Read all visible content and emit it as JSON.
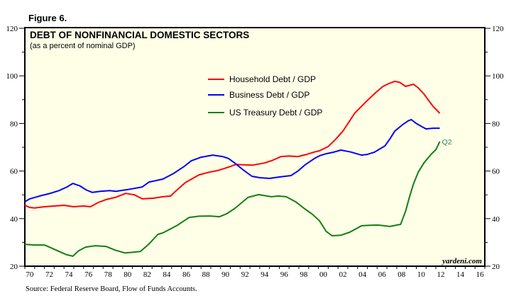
{
  "figure_label": "Figure 6.",
  "source_note": "Source: Federal Reserve Board, Flow of Funds Accounts.",
  "watermark": "yardeni.com",
  "chart_data": {
    "type": "line",
    "title": "DEBT OF NONFINANCIAL DOMESTIC SECTORS",
    "subtitle": "(as a percent of nominal GDP)",
    "xlabel": "",
    "ylabel": "",
    "xlim": [
      1970,
      2017
    ],
    "ylim": [
      20,
      120
    ],
    "yticks": [
      20,
      40,
      60,
      80,
      100,
      120
    ],
    "yticks_minor": [
      30,
      50,
      70,
      90,
      110
    ],
    "ytick_labels_left": [
      "20",
      "40",
      "60",
      "80",
      "100",
      "120"
    ],
    "ytick_labels_right": [
      "20",
      "40",
      "60",
      "80",
      "100",
      "120"
    ],
    "xtick_labels": [
      "70",
      "72",
      "74",
      "76",
      "78",
      "80",
      "82",
      "84",
      "86",
      "88",
      "90",
      "92",
      "94",
      "96",
      "98",
      "00",
      "02",
      "04",
      "06",
      "08",
      "10",
      "12",
      "14",
      "16"
    ],
    "xtick_years": [
      1970,
      1972,
      1974,
      1976,
      1978,
      1980,
      1982,
      1984,
      1986,
      1988,
      1990,
      1992,
      1994,
      1996,
      1998,
      2000,
      2002,
      2004,
      2006,
      2008,
      2010,
      2012,
      2014,
      2016
    ],
    "grid": false,
    "legend_position": "top-center",
    "end_annotation": {
      "series": "US Treasury Debt / GDP",
      "text": "Q2",
      "color": "#2e8b57"
    },
    "series": [
      {
        "name": "Household Debt / GDP",
        "color": "#ff0000",
        "x": [
          1970.0,
          1970.5,
          1971.0,
          1972.0,
          1973.0,
          1974.0,
          1975.0,
          1976.0,
          1976.7,
          1977.5,
          1978.3,
          1979.3,
          1980.3,
          1981.2,
          1982.0,
          1983.2,
          1984.1,
          1984.9,
          1985.4,
          1986.3,
          1986.5,
          1987.8,
          1988.8,
          1989.7,
          1990.7,
          1991.6,
          1992.5,
          1993.3,
          1994.5,
          1995.3,
          1996.2,
          1997.0,
          1997.9,
          1998.8,
          1999.6,
          2000.1,
          2001.0,
          2001.8,
          2002.5,
          2003.1,
          2003.7,
          2004.3,
          2004.9,
          2005.8,
          2006.6,
          2007.2,
          2007.8,
          2008.3,
          2008.9,
          2009.3,
          2009.7,
          2010.2,
          2010.8,
          2011.2,
          2011.7,
          2012.4
        ],
        "values": [
          45.6,
          44.7,
          44.5,
          45.0,
          45.3,
          45.6,
          45.0,
          45.3,
          45.0,
          46.8,
          48.0,
          49.0,
          50.6,
          50.0,
          48.3,
          48.6,
          49.2,
          49.5,
          51.5,
          54.8,
          55.4,
          58.4,
          59.5,
          60.2,
          61.5,
          62.8,
          62.6,
          62.5,
          63.4,
          64.5,
          66.1,
          66.3,
          66.1,
          67.0,
          68.0,
          68.5,
          70.3,
          73.5,
          76.8,
          80.5,
          84.3,
          86.8,
          89.3,
          92.8,
          95.6,
          96.8,
          97.7,
          97.3,
          95.6,
          96.0,
          96.5,
          95.0,
          92.3,
          90.0,
          87.3,
          84.3
        ]
      },
      {
        "name": "Business Debt / GDP",
        "color": "#0000ff",
        "x": [
          1970.0,
          1970.5,
          1971.5,
          1972.5,
          1973.5,
          1974.3,
          1974.9,
          1975.6,
          1976.3,
          1976.9,
          1977.7,
          1978.7,
          1979.3,
          1980.5,
          1982.0,
          1982.7,
          1984.1,
          1985.2,
          1986.3,
          1987.0,
          1988.0,
          1989.2,
          1990.2,
          1990.8,
          1991.4,
          1992.3,
          1993.2,
          1994.0,
          1995.0,
          1996.0,
          1997.2,
          1997.9,
          1998.6,
          1999.6,
          2000.1,
          2000.8,
          2001.5,
          2002.3,
          2003.3,
          2004.4,
          2005.0,
          2005.7,
          2006.8,
          2007.3,
          2007.8,
          2008.6,
          2009.2,
          2009.5,
          2010.0,
          2010.5,
          2011.0,
          2011.7,
          2012.4
        ],
        "values": [
          47.1,
          48.3,
          49.5,
          50.5,
          51.8,
          53.3,
          54.8,
          53.8,
          52.0,
          51.0,
          51.5,
          51.8,
          51.5,
          52.2,
          53.3,
          55.4,
          56.6,
          59.0,
          62.0,
          64.3,
          65.8,
          66.7,
          66.1,
          65.3,
          63.5,
          60.5,
          57.8,
          57.2,
          56.9,
          57.5,
          58.1,
          60.0,
          62.5,
          65.3,
          66.4,
          67.3,
          67.9,
          68.8,
          68.0,
          66.7,
          67.0,
          67.9,
          70.6,
          73.5,
          76.8,
          79.5,
          81.2,
          81.6,
          80.0,
          78.8,
          77.7,
          78.0,
          78.0
        ]
      },
      {
        "name": "US Treasury Debt / GDP",
        "color": "#118011",
        "x": [
          1970.0,
          1971.0,
          1972.0,
          1972.8,
          1973.6,
          1974.3,
          1974.9,
          1975.5,
          1976.2,
          1977.2,
          1978.3,
          1979.2,
          1980.2,
          1980.9,
          1981.8,
          1982.6,
          1983.6,
          1984.1,
          1985.5,
          1986.8,
          1987.8,
          1988.9,
          1989.9,
          1990.6,
          1991.4,
          1992.1,
          1992.8,
          1993.9,
          1995.2,
          1995.9,
          1996.7,
          1997.7,
          1998.6,
          1999.4,
          2000.1,
          2000.8,
          2001.4,
          2002.3,
          2003.2,
          2004.4,
          2005.2,
          2006.1,
          2007.3,
          2008.4,
          2008.9,
          2009.3,
          2009.7,
          2010.2,
          2010.8,
          2011.5,
          2012.0,
          2012.4
        ],
        "values": [
          29.2,
          28.9,
          28.9,
          27.5,
          26.0,
          24.8,
          24.2,
          26.5,
          28.0,
          28.6,
          28.3,
          26.8,
          25.6,
          25.8,
          26.2,
          29.0,
          33.4,
          34.0,
          37.0,
          40.5,
          41.0,
          41.1,
          40.8,
          42.0,
          44.1,
          46.5,
          48.9,
          50.1,
          49.2,
          49.5,
          49.2,
          47.0,
          44.1,
          41.8,
          39.1,
          34.6,
          32.8,
          33.0,
          34.3,
          37.0,
          37.2,
          37.3,
          36.7,
          37.6,
          43.0,
          49.0,
          54.5,
          59.5,
          63.5,
          67.0,
          69.0,
          72.4
        ]
      }
    ]
  }
}
